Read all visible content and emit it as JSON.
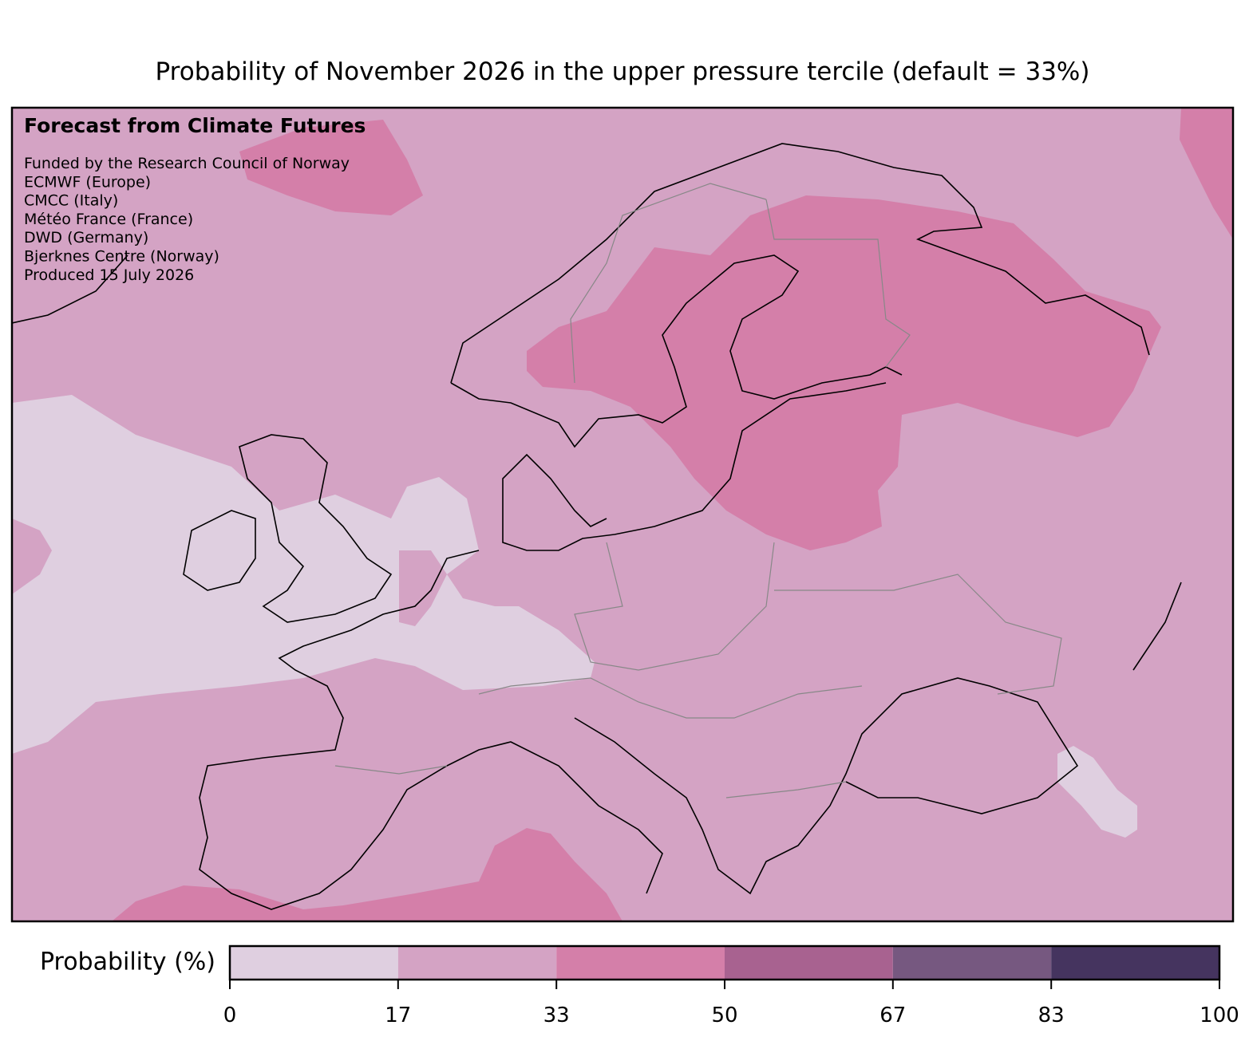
{
  "title": "Probability of November 2026 in the upper pressure tercile (default = 33%)",
  "annotation": {
    "heading": "Forecast from Climate Futures",
    "lines": [
      "Funded by the Research Council of Norway",
      "ECMWF (Europe)",
      "CMCC (Italy)",
      "Météo France (France)",
      "DWD (Germany)",
      "Bjerknes Centre (Norway)",
      "Produced 15 July 2026"
    ]
  },
  "colorbar": {
    "label": "Probability (%)",
    "lim": [
      0,
      100
    ],
    "ticks": [
      0,
      17,
      33,
      50,
      67,
      83,
      100
    ],
    "colors": [
      "#dfcfe0",
      "#d4a3c4",
      "#d47fa9",
      "#a86290",
      "#765880",
      "#45345f"
    ]
  }
}
